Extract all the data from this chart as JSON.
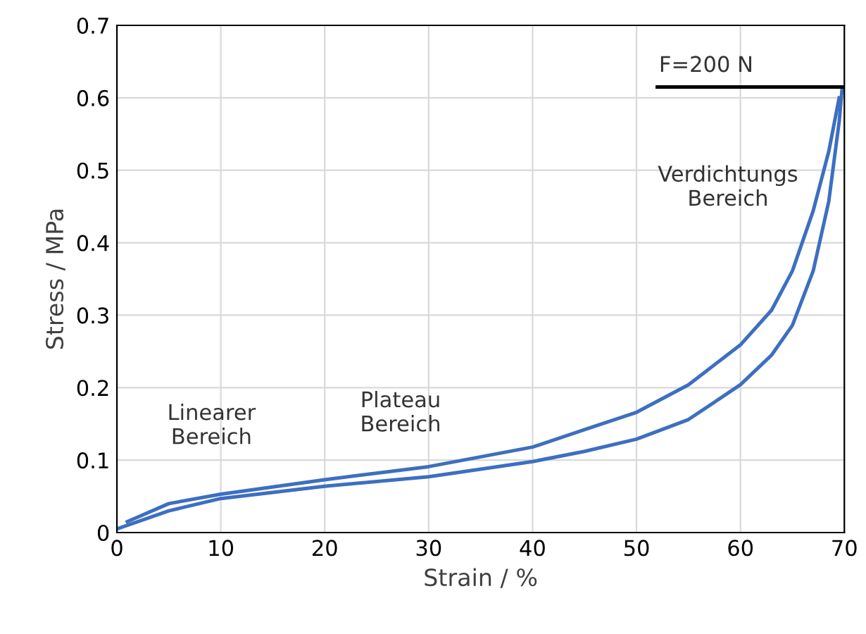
{
  "chart_data": {
    "type": "line",
    "xlabel": "Strain / %",
    "ylabel": "Stress / MPa",
    "xlim": [
      0,
      70
    ],
    "xticks": [
      0,
      10,
      20,
      30,
      40,
      50,
      60,
      70
    ],
    "ylim": [
      0,
      0.7
    ],
    "yticks": [
      0,
      0.1,
      0.2,
      0.3,
      0.4,
      0.5,
      0.6,
      0.7
    ],
    "grid": true,
    "marker": "none",
    "line_style": "solid",
    "series": [
      {
        "color": "#3d6fc0",
        "x": [
          1,
          5,
          10,
          20,
          30,
          40,
          45,
          50,
          55,
          60,
          63,
          65,
          67,
          68.5,
          69.5
        ],
        "values": [
          0.015,
          0.04,
          0.053,
          0.073,
          0.091,
          0.118,
          0.142,
          0.166,
          0.204,
          0.259,
          0.307,
          0.361,
          0.444,
          0.526,
          0.6
        ]
      },
      {
        "color": "#3d6fc0",
        "x": [
          0,
          5,
          10,
          20,
          30,
          40,
          45,
          50,
          55,
          60,
          63,
          65,
          67,
          68.5,
          69.5,
          69.8
        ],
        "values": [
          0.005,
          0.03,
          0.047,
          0.064,
          0.077,
          0.098,
          0.112,
          0.129,
          0.156,
          0.204,
          0.245,
          0.286,
          0.361,
          0.457,
          0.567,
          0.615
        ]
      },
      {
        "color": "#000000",
        "x": [
          52,
          70
        ],
        "values": [
          0.615,
          0.615
        ]
      }
    ],
    "annotations": [
      "F=200 N",
      "Linearer\nBereich",
      "Plateau\nBereich",
      "Verdichtungs\nBereich"
    ]
  }
}
